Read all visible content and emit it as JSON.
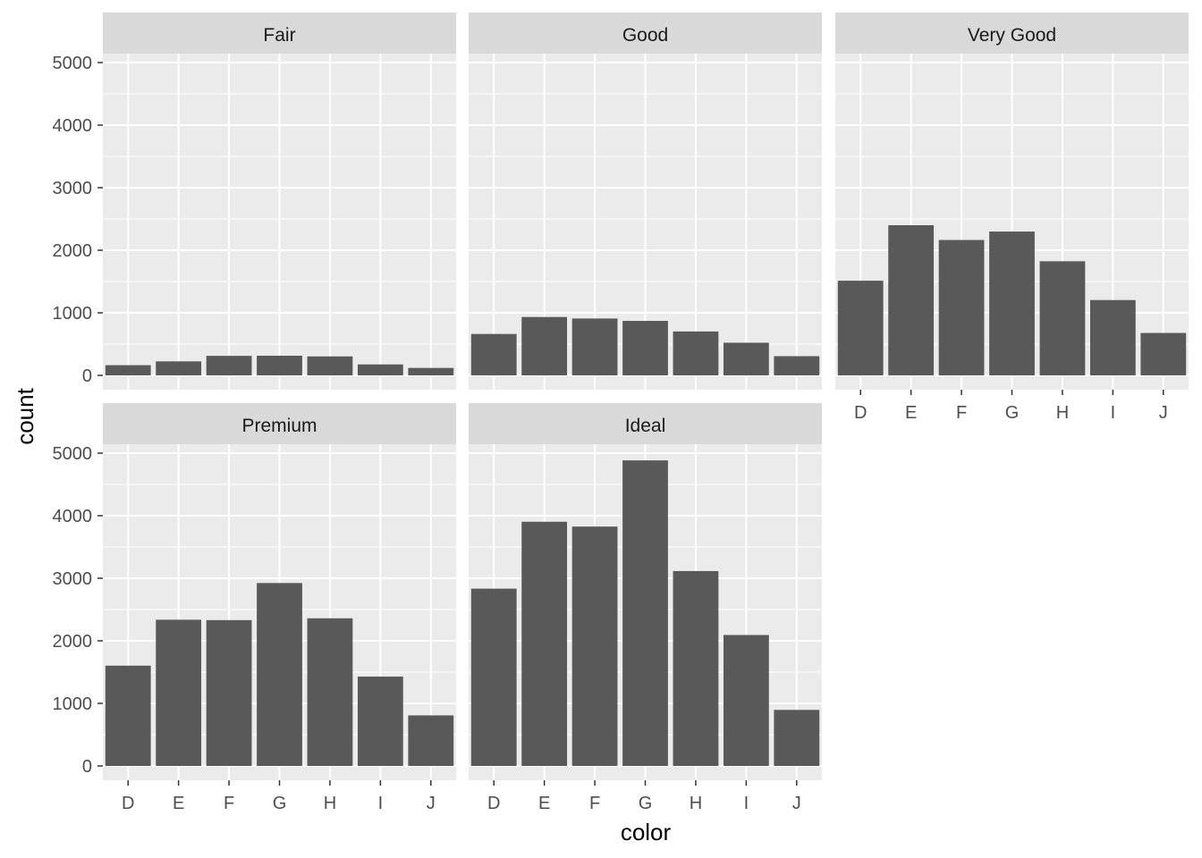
{
  "chart_data": {
    "type": "bar",
    "facet_by": "cut",
    "xlabel": "color",
    "ylabel": "count",
    "categories": [
      "D",
      "E",
      "F",
      "G",
      "H",
      "I",
      "J"
    ],
    "ylim": [
      0,
      5000
    ],
    "yticks": [
      0,
      1000,
      2000,
      3000,
      4000,
      5000
    ],
    "grid": true,
    "bar_color": "#595959",
    "panel_background": "#ebebeb",
    "strip_background": "#d9d9d9",
    "facets": [
      {
        "name": "Fair",
        "values": [
          163,
          224,
          312,
          314,
          303,
          175,
          119
        ]
      },
      {
        "name": "Good",
        "values": [
          662,
          933,
          909,
          871,
          702,
          522,
          307
        ]
      },
      {
        "name": "Very Good",
        "values": [
          1513,
          2400,
          2164,
          2299,
          1824,
          1204,
          678
        ]
      },
      {
        "name": "Premium",
        "values": [
          1603,
          2337,
          2331,
          2924,
          2360,
          1428,
          808
        ]
      },
      {
        "name": "Ideal",
        "values": [
          2834,
          3903,
          3826,
          4884,
          3115,
          2093,
          896
        ]
      }
    ]
  }
}
